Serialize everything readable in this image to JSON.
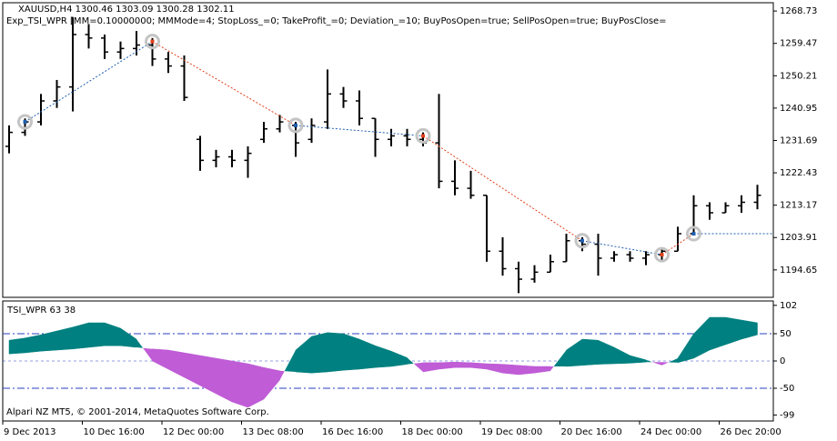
{
  "chart_data": [
    {
      "type": "ohlc",
      "title": "XAUUSD,H4  1300.46 1303.09 1300.28 1302.11",
      "subtitle": "Exp_TSI_WPR [MM=0.10000000; MMMode=4; StopLoss_=0; TakeProfit_=0; Deviation_=10; BuyPosOpen=true; SellPosOpen=true; BuyPosClose=",
      "color": "#000000",
      "open": [
        1230,
        1234,
        1237,
        1243,
        1247,
        1262,
        1261,
        1257,
        1258,
        1259,
        1255,
        1253,
        1232,
        1226,
        1227,
        1226,
        1232,
        1235,
        1236,
        1232,
        1237,
        1245,
        1243,
        1238,
        1232,
        1233,
        1232,
        1231,
        1220,
        1218,
        1216,
        1200,
        1195,
        1192,
        1194,
        1197,
        1203,
        1202,
        1198,
        1199,
        1198,
        1199,
        1200,
        1205,
        1213,
        1211,
        1213,
        1214
      ],
      "high": [
        1236,
        1238,
        1245,
        1249,
        1267,
        1265,
        1262,
        1260,
        1263,
        1261,
        1257,
        1256,
        1233,
        1229,
        1229,
        1230,
        1237,
        1239,
        1237,
        1238,
        1252,
        1247,
        1246,
        1238,
        1235,
        1235,
        1234,
        1245,
        1226,
        1223,
        1216,
        1204,
        1197,
        1196,
        1199,
        1205,
        1204,
        1205,
        1200,
        1200,
        1200,
        1201,
        1207,
        1216,
        1214,
        1214,
        1216,
        1219
      ],
      "low": [
        1228,
        1233,
        1236,
        1241,
        1240,
        1258,
        1255,
        1255,
        1256,
        1253,
        1251,
        1243,
        1223,
        1224,
        1224,
        1221,
        1231,
        1234,
        1227,
        1231,
        1235,
        1241,
        1236,
        1227,
        1230,
        1230,
        1230,
        1218,
        1216,
        1215,
        1197,
        1193,
        1188,
        1191,
        1194,
        1197,
        1200,
        1193,
        1197,
        1197,
        1196,
        1197,
        1200,
        1205,
        1209,
        1211,
        1211,
        1212
      ],
      "close": [
        1234,
        1237,
        1243,
        1247,
        1262,
        1261,
        1257,
        1258,
        1259,
        1255,
        1253,
        1244,
        1226,
        1227,
        1226,
        1228,
        1235,
        1237,
        1231,
        1236,
        1245,
        1243,
        1238,
        1232,
        1233,
        1232,
        1231,
        1220,
        1218,
        1216,
        1200,
        1195,
        1192,
        1194,
        1197,
        1203,
        1202,
        1198,
        1199,
        1198,
        1199,
        1200,
        1205,
        1213,
        1211,
        1213,
        1214,
        1216
      ],
      "trades": {
        "bars": [
          1,
          9,
          18,
          26,
          36,
          41,
          43
        ],
        "prices": [
          1237,
          1260,
          1236,
          1233,
          1203,
          1199,
          1205
        ],
        "colors": [
          "#1f5fb0",
          "#e0401c",
          "#1f5fb0",
          "#e0401c",
          "#1f5fb0",
          "#e0401c",
          "#1f5fb0"
        ]
      },
      "ylim": [
        1186.8,
        1271.1
      ],
      "yticks": [
        1268.73,
        1259.47,
        1250.21,
        1240.95,
        1231.69,
        1222.43,
        1213.17,
        1203.91,
        1194.65
      ]
    },
    {
      "type": "band",
      "title": "TSI_WPR 63 38",
      "annotation": "Alpari NZ MT5, © 2001-2014, MetaQuotes Software Corp.",
      "categories": [
        "9 Dec 2013",
        null,
        null,
        null,
        null,
        "10 Dec 16:00",
        null,
        null,
        null,
        null,
        "12 Dec 00:00",
        null,
        null,
        null,
        null,
        "13 Dec 08:00",
        null,
        null,
        null,
        null,
        "16 Dec 16:00",
        null,
        null,
        null,
        null,
        "18 Dec 00:00",
        null,
        null,
        null,
        null,
        "19 Dec 08:00",
        null,
        null,
        null,
        null,
        "20 Dec 16:00",
        null,
        null,
        null,
        null,
        "24 Dec 00:00",
        null,
        null,
        null,
        null,
        "26 Dec 20:00",
        null,
        null
      ],
      "series": [
        {
          "color": "#008080",
          "values": [
            38,
            42,
            48,
            55,
            62,
            70,
            70,
            60,
            40,
            0,
            -15,
            -30,
            -45,
            -60,
            -75,
            -85,
            -70,
            -35,
            20,
            45,
            52,
            50,
            40,
            28,
            18,
            6,
            -20,
            -15,
            -12,
            -12,
            -15,
            -22,
            -25,
            -22,
            -18,
            20,
            40,
            38,
            25,
            10,
            2,
            -8,
            5,
            50,
            80,
            80,
            75,
            70
          ]
        },
        {
          "color": "#bf5cd6",
          "values": [
            13,
            15,
            18,
            20,
            22,
            25,
            28,
            28,
            25,
            22,
            20,
            15,
            10,
            5,
            0,
            -5,
            -12,
            -18,
            -20,
            -22,
            -20,
            -17,
            -15,
            -12,
            -10,
            -6,
            -3,
            -3,
            -2,
            -3,
            -5,
            -6,
            -8,
            -10,
            -10,
            -10,
            -8,
            -6,
            -5,
            -4,
            -2,
            -2,
            -3,
            5,
            20,
            30,
            40,
            48
          ]
        }
      ],
      "levels": [
        50,
        0,
        -50
      ],
      "level_color": "#2a3fc0",
      "ylim": [
        -110,
        110
      ],
      "yticks": [
        102,
        50,
        0,
        -50,
        -99
      ]
    }
  ]
}
